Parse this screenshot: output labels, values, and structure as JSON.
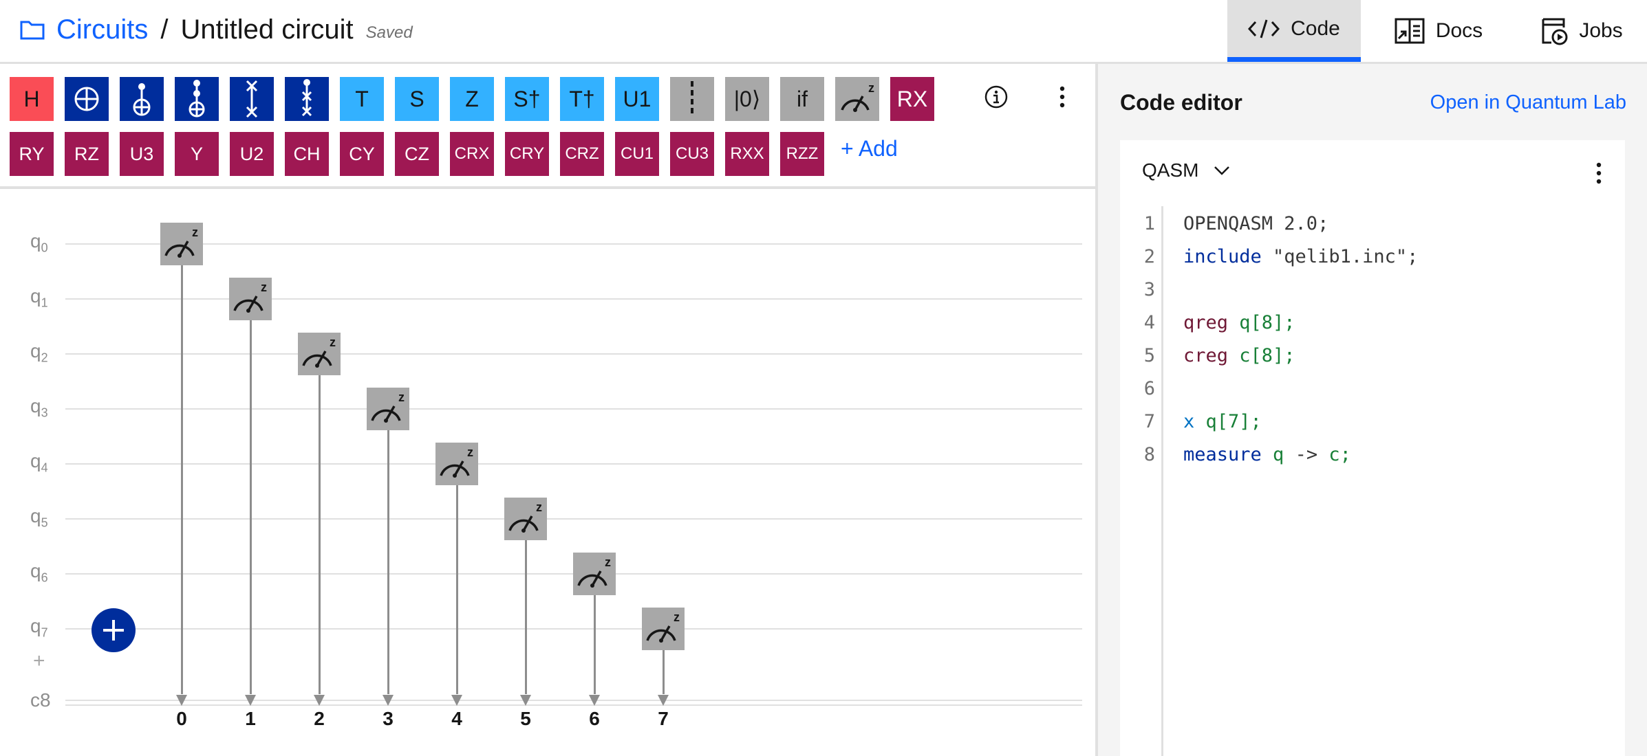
{
  "header": {
    "breadcrumb_root": "Circuits",
    "separator": "/",
    "title": "Untitled circuit",
    "status": "Saved",
    "tabs": [
      {
        "label": "Code",
        "icon": "code-icon",
        "active": true
      },
      {
        "label": "Docs",
        "icon": "docs-icon",
        "active": false
      },
      {
        "label": "Jobs",
        "icon": "jobs-icon",
        "active": false
      }
    ]
  },
  "palette": {
    "row1": [
      {
        "label": "H",
        "color": "red"
      },
      {
        "label": "",
        "icon": "cnot-target-icon",
        "color": "navy"
      },
      {
        "label": "",
        "icon": "cx-icon",
        "color": "navy"
      },
      {
        "label": "",
        "icon": "ccx-icon",
        "color": "navy"
      },
      {
        "label": "",
        "icon": "swap-icon",
        "color": "navy"
      },
      {
        "label": "",
        "icon": "cswap-icon",
        "color": "navy"
      },
      {
        "label": "T",
        "color": "cyan"
      },
      {
        "label": "S",
        "color": "cyan"
      },
      {
        "label": "Z",
        "color": "cyan"
      },
      {
        "label": "S†",
        "color": "cyan"
      },
      {
        "label": "T†",
        "color": "cyan"
      },
      {
        "label": "U1",
        "color": "cyan"
      },
      {
        "label": "",
        "icon": "barrier-icon",
        "color": "gray"
      },
      {
        "label": "|0⟩",
        "color": "gray"
      },
      {
        "label": "if",
        "color": "gray"
      },
      {
        "label": "",
        "icon": "measure-icon",
        "color": "gray"
      },
      {
        "label": "RX",
        "color": "magenta"
      }
    ],
    "row2": [
      "RY",
      "RZ",
      "U3",
      "Y",
      "U2",
      "CH",
      "CY",
      "CZ",
      "CRX",
      "CRY",
      "CRZ",
      "CU1",
      "CU3",
      "RXX",
      "RZZ"
    ],
    "add_label": "+ Add"
  },
  "circuit": {
    "qubits": [
      "q",
      "q",
      "q",
      "q",
      "q",
      "q",
      "q",
      "q"
    ],
    "qubit_indices": [
      "0",
      "1",
      "2",
      "3",
      "4",
      "5",
      "6",
      "7"
    ],
    "classical_label": "c8",
    "bit_numbers": [
      "0",
      "1",
      "2",
      "3",
      "4",
      "5",
      "6",
      "7"
    ],
    "measure_label": "z"
  },
  "editor": {
    "title": "Code editor",
    "open_link": "Open in Quantum Lab",
    "language": "QASM",
    "lines": [
      {
        "n": "1",
        "tokens": [
          {
            "t": "OPENQASM 2.0;",
            "c": "plain"
          }
        ]
      },
      {
        "n": "2",
        "tokens": [
          {
            "t": "include ",
            "c": "kw"
          },
          {
            "t": "\"qelib1.inc\";",
            "c": "str"
          }
        ]
      },
      {
        "n": "3",
        "tokens": []
      },
      {
        "n": "4",
        "tokens": [
          {
            "t": "qreg ",
            "c": "reg"
          },
          {
            "t": "q[8];",
            "c": "var"
          }
        ]
      },
      {
        "n": "5",
        "tokens": [
          {
            "t": "creg ",
            "c": "reg"
          },
          {
            "t": "c[8];",
            "c": "var"
          }
        ]
      },
      {
        "n": "6",
        "tokens": []
      },
      {
        "n": "7",
        "tokens": [
          {
            "t": "x ",
            "c": "gate"
          },
          {
            "t": "q[7];",
            "c": "var"
          }
        ]
      },
      {
        "n": "8",
        "tokens": [
          {
            "t": "measure ",
            "c": "kw"
          },
          {
            "t": "q",
            "c": "var"
          },
          {
            "t": " -> ",
            "c": "plain"
          },
          {
            "t": "c;",
            "c": "var"
          }
        ]
      }
    ]
  }
}
